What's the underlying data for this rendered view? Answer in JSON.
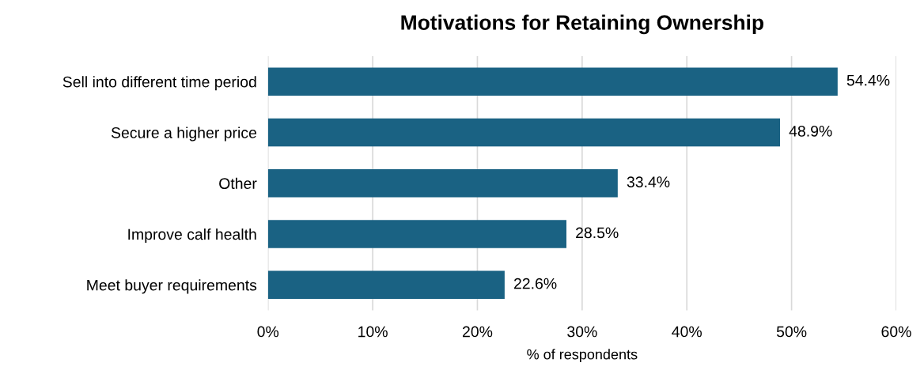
{
  "chart_data": {
    "type": "bar",
    "orientation": "horizontal",
    "title": "Motivations for Retaining Ownership",
    "xlabel": "% of respondents",
    "categories": [
      "Sell into different time period",
      "Secure a higher price",
      "Other",
      "Improve calf health",
      "Meet buyer requirements"
    ],
    "values": [
      54.4,
      48.9,
      33.4,
      28.5,
      22.6
    ],
    "value_labels": [
      "54.4%",
      "48.9%",
      "33.4%",
      "28.5%",
      "22.6%"
    ],
    "color": "#1a6283",
    "xlim": [
      0,
      60
    ],
    "xticks": [
      {
        "value": 0,
        "label": "0%"
      },
      {
        "value": 10,
        "label": "10%"
      },
      {
        "value": 20,
        "label": "20%"
      },
      {
        "value": 30,
        "label": "30%"
      },
      {
        "value": 40,
        "label": "40%"
      },
      {
        "value": 50,
        "label": "50%"
      },
      {
        "value": 60,
        "label": "60%"
      }
    ],
    "grid": "x"
  }
}
